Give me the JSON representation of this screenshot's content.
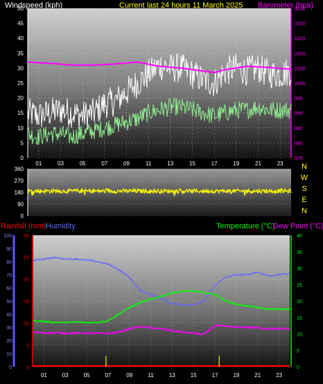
{
  "colors": {
    "bg": "#000000",
    "white": "#ffffff",
    "yellow": "#ffff00",
    "magenta": "#ff00ff",
    "green": "#00ff00",
    "lightgreen": "#90ee90",
    "red": "#ff0000",
    "blue": "#5a5aff",
    "gridline": "#d8d8d8"
  },
  "chart_data": [
    {
      "type": "line",
      "title": "Current last 24 hours 11 March 2025",
      "left_axis_label": "Windspeed (kph)",
      "right_axis_label": "Barometer (hpa)",
      "x_ticks": [
        "01",
        "03",
        "05",
        "07",
        "09",
        "11",
        "13",
        "15",
        "17",
        "19",
        "21",
        "23"
      ],
      "left_ticks": [
        "0",
        "5",
        "10",
        "15",
        "20",
        "25",
        "30",
        "35",
        "40",
        "45",
        "50"
      ],
      "right_ticks": [
        "975",
        "980",
        "985",
        "990",
        "995",
        "1000",
        "1005",
        "1010",
        "1015",
        "1020",
        "1025"
      ],
      "ylim_left": [
        0,
        50
      ],
      "ylim_right": [
        975,
        1025
      ],
      "series": [
        {
          "key": "gust",
          "color": "#ffffff",
          "hours": [
            0,
            1,
            2,
            3,
            4,
            5,
            6,
            7,
            8,
            9,
            10,
            11,
            12,
            13,
            14,
            15,
            16,
            17,
            18,
            19,
            20,
            21,
            22,
            23,
            24
          ],
          "values": [
            15,
            14,
            15,
            16,
            15,
            14,
            15,
            18,
            19,
            22,
            25,
            28,
            31,
            30,
            30,
            28,
            26,
            25,
            29,
            30,
            29,
            30,
            28,
            28,
            29
          ]
        },
        {
          "key": "average",
          "color": "#90ee90",
          "hours": [
            0,
            1,
            2,
            3,
            4,
            5,
            6,
            7,
            8,
            9,
            10,
            11,
            12,
            13,
            14,
            15,
            16,
            17,
            18,
            19,
            20,
            21,
            22,
            23,
            24
          ],
          "values": [
            8,
            7,
            8,
            8,
            7,
            8,
            9,
            10,
            11,
            12,
            13,
            15,
            16,
            17,
            17,
            16,
            15,
            14,
            15,
            16,
            16,
            17,
            16,
            16,
            16
          ]
        },
        {
          "key": "barometer",
          "color": "#ff00ff",
          "axis": "right",
          "hours": [
            0,
            2,
            4,
            6,
            8,
            10,
            12,
            14,
            16,
            17,
            18,
            20,
            22,
            24
          ],
          "values": [
            1007,
            1006.6,
            1006,
            1006,
            1006.4,
            1007,
            1005.6,
            1005,
            1004,
            1003.5,
            1004.5,
            1005.6,
            1005.2,
            1004.6
          ]
        }
      ]
    },
    {
      "type": "scatter",
      "left_ticks": [
        "360",
        "270",
        "180",
        "90",
        "0"
      ],
      "ylim": [
        0,
        360
      ],
      "right_labels": [
        "N",
        "W",
        "S",
        "E",
        "N"
      ],
      "series": [
        {
          "key": "wind_direction",
          "color": "#ffff00",
          "mean": 190,
          "spread": 15
        }
      ]
    },
    {
      "type": "line",
      "rain_label": "Rainfall (mm)",
      "humidity_label": "Humidity",
      "temp_label": "Temperature (°C)",
      "dew_label": "Dew Point (°C)",
      "x_ticks": [
        "01",
        "03",
        "05",
        "07",
        "09",
        "11",
        "13",
        "15",
        "17",
        "19",
        "21",
        "23"
      ],
      "humidity_ticks": [
        "0",
        "10",
        "20",
        "30",
        "40",
        "50",
        "60",
        "70",
        "80",
        "90",
        "100"
      ],
      "rain_ticks": [
        "0",
        "5",
        "10",
        "15",
        "20",
        "25",
        "30"
      ],
      "temp_ticks": [
        "0",
        "5",
        "10",
        "15",
        "20",
        "25",
        "30",
        "35",
        "40"
      ],
      "ylim_humidity": [
        0,
        100
      ],
      "ylim_rain": [
        0,
        30
      ],
      "ylim_temp": [
        0,
        40
      ],
      "series": [
        {
          "key": "humidity",
          "color": "#6666ff",
          "axis": "humidity",
          "hours": [
            0,
            1,
            2,
            3,
            4,
            5,
            6,
            7,
            8,
            9,
            10,
            11,
            12,
            13,
            14,
            15,
            16,
            17,
            18,
            19,
            20,
            21,
            22,
            23,
            24
          ],
          "values": [
            81,
            82,
            83,
            82,
            82,
            81,
            80,
            78,
            74,
            68,
            58,
            55,
            52,
            48,
            47,
            47,
            50,
            62,
            68,
            70,
            70,
            72,
            69,
            70,
            71
          ]
        },
        {
          "key": "temperature",
          "color": "#00ff00",
          "axis": "temp",
          "hours": [
            0,
            1,
            2,
            3,
            4,
            5,
            6,
            7,
            8,
            9,
            10,
            11,
            12,
            13,
            14,
            15,
            16,
            17,
            18,
            19,
            20,
            21,
            22,
            23,
            24
          ],
          "values": [
            14,
            13.8,
            13.5,
            13.5,
            13.6,
            13.4,
            13.5,
            14,
            16,
            18,
            19.5,
            20.5,
            21.5,
            22.5,
            23,
            23,
            22.5,
            22,
            20,
            19,
            18.5,
            18,
            17.5,
            17.5,
            17.5
          ]
        },
        {
          "key": "dew_point",
          "color": "#ff00ff",
          "axis": "temp",
          "hours": [
            0,
            1,
            2,
            3,
            4,
            5,
            6,
            7,
            8,
            9,
            10,
            11,
            12,
            13,
            14,
            15,
            16,
            17,
            18,
            19,
            20,
            21,
            22,
            23,
            24
          ],
          "values": [
            10.5,
            10.3,
            10.3,
            10.2,
            10.2,
            10.2,
            10.1,
            10.1,
            10.5,
            11.5,
            12.2,
            11.8,
            11.5,
            11,
            10.5,
            10.2,
            9.8,
            12.5,
            12.3,
            12,
            12,
            11.8,
            11.6,
            11.5,
            11.6
          ]
        },
        {
          "key": "rainfall",
          "color": "#ff0000",
          "axis": "rain",
          "hours": [
            0,
            24
          ],
          "values": [
            0,
            0
          ]
        },
        {
          "key": "rain_markers",
          "color": "#c8c800",
          "axis": "rain",
          "hours": [
            6.8,
            17.4
          ],
          "values": [
            2.5,
            2.5
          ]
        }
      ]
    }
  ]
}
